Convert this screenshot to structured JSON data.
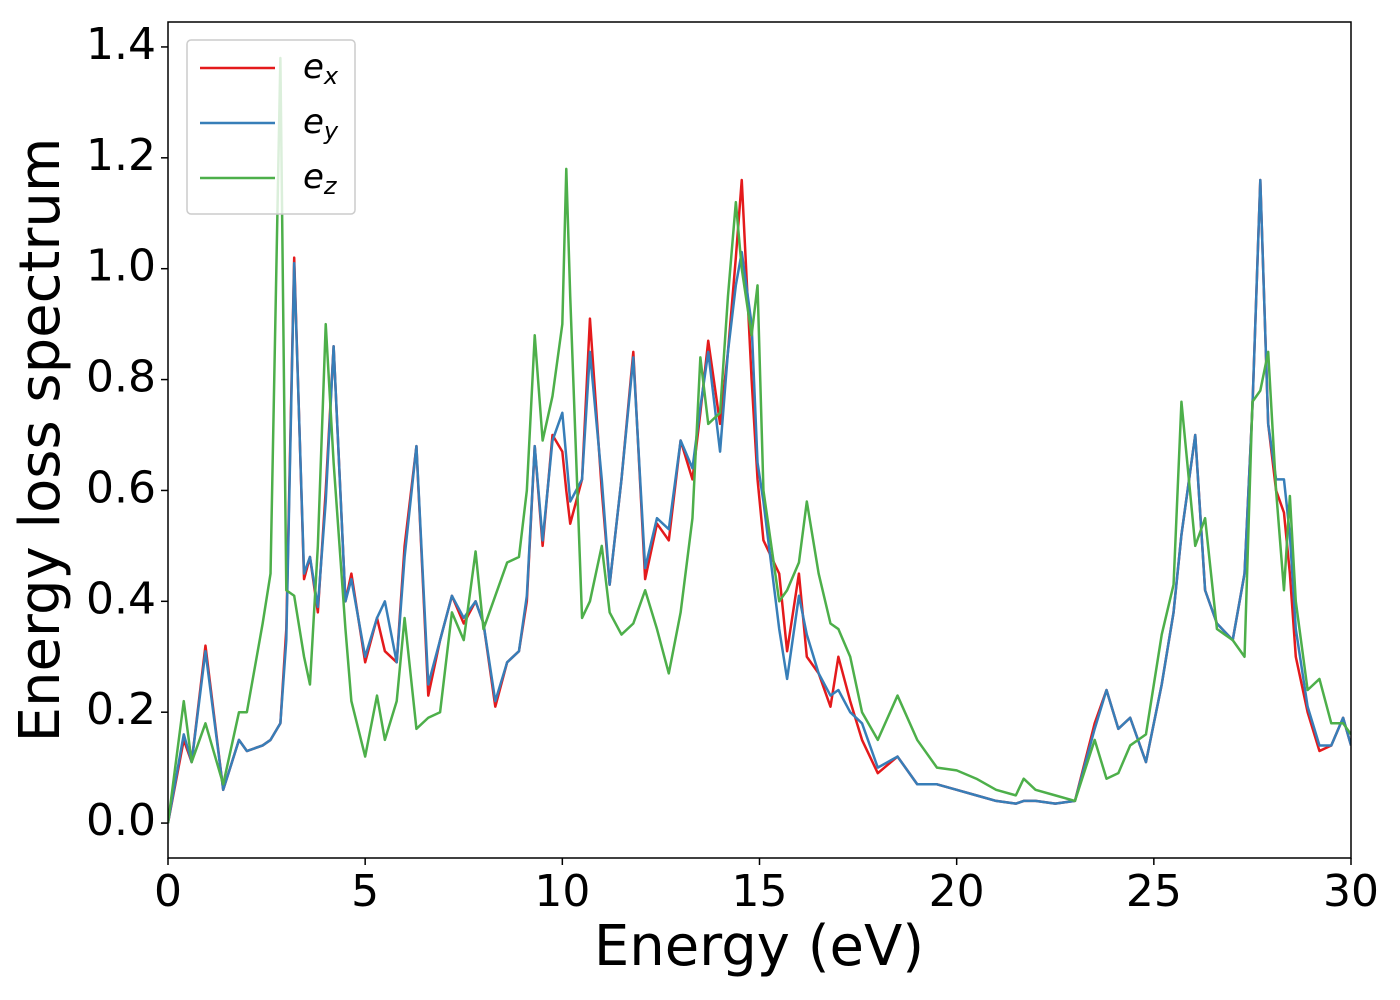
{
  "chart_data": {
    "type": "line",
    "xlabel": "Energy (eV)",
    "ylabel": "Energy loss spectrum",
    "x": [
      0,
      0.4,
      0.6,
      0.95,
      1.4,
      1.8,
      2.0,
      2.4,
      2.6,
      2.85,
      3.0,
      3.2,
      3.45,
      3.6,
      3.8,
      4.0,
      4.2,
      4.5,
      4.65,
      5.0,
      5.3,
      5.5,
      5.8,
      6.0,
      6.3,
      6.6,
      6.9,
      7.2,
      7.5,
      7.8,
      8.0,
      8.3,
      8.6,
      8.9,
      9.1,
      9.3,
      9.5,
      9.75,
      10.0,
      10.1,
      10.2,
      10.5,
      10.7,
      11.0,
      11.2,
      11.5,
      11.8,
      12.1,
      12.4,
      12.7,
      13.0,
      13.3,
      13.5,
      13.7,
      14.0,
      14.2,
      14.4,
      14.55,
      14.8,
      14.95,
      15.1,
      15.5,
      15.7,
      16.0,
      16.2,
      16.5,
      16.8,
      17.0,
      17.3,
      17.6,
      18.0,
      18.5,
      19.0,
      19.5,
      20.0,
      20.5,
      21.0,
      21.5,
      21.7,
      22.0,
      22.5,
      23.0,
      23.5,
      23.8,
      24.1,
      24.4,
      24.8,
      25.2,
      25.5,
      25.7,
      26.05,
      26.3,
      26.6,
      27.0,
      27.3,
      27.5,
      27.7,
      27.9,
      28.1,
      28.3,
      28.45,
      28.6,
      28.9,
      29.2,
      29.5,
      29.8,
      30.0
    ],
    "series": [
      {
        "name": "ex",
        "color": "#e41a1c",
        "values": [
          0,
          0.15,
          0.11,
          0.32,
          0.06,
          0.15,
          0.13,
          0.14,
          0.15,
          0.18,
          0.35,
          1.02,
          0.44,
          0.48,
          0.38,
          0.6,
          0.86,
          0.4,
          0.45,
          0.29,
          0.37,
          0.31,
          0.29,
          0.5,
          0.68,
          0.23,
          0.33,
          0.41,
          0.36,
          0.4,
          0.36,
          0.21,
          0.29,
          0.31,
          0.4,
          0.68,
          0.5,
          0.7,
          0.67,
          0.6,
          0.54,
          0.62,
          0.91,
          0.6,
          0.43,
          0.62,
          0.85,
          0.44,
          0.54,
          0.51,
          0.69,
          0.62,
          0.74,
          0.87,
          0.72,
          0.85,
          1.02,
          1.16,
          0.8,
          0.62,
          0.51,
          0.45,
          0.31,
          0.45,
          0.3,
          0.27,
          0.21,
          0.3,
          0.22,
          0.15,
          0.09,
          0.12,
          0.07,
          0.07,
          0.06,
          0.05,
          0.04,
          0.035,
          0.04,
          0.04,
          0.035,
          0.04,
          0.18,
          0.24,
          0.17,
          0.19,
          0.11,
          0.25,
          0.38,
          0.52,
          0.7,
          0.42,
          0.36,
          0.33,
          0.45,
          0.75,
          1.16,
          0.72,
          0.6,
          0.56,
          0.45,
          0.3,
          0.2,
          0.13,
          0.14,
          0.19,
          0.14
        ]
      },
      {
        "name": "ey",
        "color": "#377eb8",
        "values": [
          0,
          0.16,
          0.11,
          0.31,
          0.06,
          0.15,
          0.13,
          0.14,
          0.15,
          0.18,
          0.33,
          1.01,
          0.45,
          0.48,
          0.39,
          0.58,
          0.86,
          0.4,
          0.44,
          0.3,
          0.37,
          0.4,
          0.29,
          0.48,
          0.68,
          0.25,
          0.33,
          0.41,
          0.37,
          0.4,
          0.36,
          0.22,
          0.29,
          0.31,
          0.41,
          0.68,
          0.51,
          0.69,
          0.74,
          0.66,
          0.58,
          0.62,
          0.85,
          0.62,
          0.43,
          0.62,
          0.84,
          0.46,
          0.55,
          0.53,
          0.69,
          0.64,
          0.75,
          0.85,
          0.67,
          0.85,
          0.97,
          1.03,
          0.9,
          0.65,
          0.58,
          0.35,
          0.26,
          0.41,
          0.34,
          0.27,
          0.23,
          0.24,
          0.2,
          0.18,
          0.1,
          0.12,
          0.07,
          0.07,
          0.06,
          0.05,
          0.04,
          0.035,
          0.04,
          0.04,
          0.035,
          0.04,
          0.17,
          0.24,
          0.17,
          0.19,
          0.11,
          0.25,
          0.38,
          0.52,
          0.7,
          0.42,
          0.36,
          0.33,
          0.45,
          0.75,
          1.16,
          0.72,
          0.62,
          0.62,
          0.52,
          0.35,
          0.21,
          0.14,
          0.14,
          0.19,
          0.14
        ]
      },
      {
        "name": "ez",
        "color": "#4daf4a",
        "values": [
          0,
          0.22,
          0.11,
          0.18,
          0.07,
          0.2,
          0.2,
          0.36,
          0.45,
          1.38,
          0.42,
          0.41,
          0.3,
          0.25,
          0.5,
          0.9,
          0.65,
          0.35,
          0.22,
          0.12,
          0.23,
          0.15,
          0.22,
          0.37,
          0.17,
          0.19,
          0.2,
          0.38,
          0.33,
          0.49,
          0.35,
          0.41,
          0.47,
          0.48,
          0.6,
          0.88,
          0.69,
          0.77,
          0.9,
          1.18,
          0.95,
          0.37,
          0.4,
          0.5,
          0.38,
          0.34,
          0.36,
          0.42,
          0.35,
          0.27,
          0.38,
          0.55,
          0.84,
          0.72,
          0.74,
          0.95,
          1.12,
          1.0,
          0.88,
          0.97,
          0.6,
          0.4,
          0.42,
          0.47,
          0.58,
          0.45,
          0.36,
          0.35,
          0.3,
          0.2,
          0.15,
          0.23,
          0.15,
          0.1,
          0.095,
          0.08,
          0.06,
          0.05,
          0.08,
          0.06,
          0.05,
          0.04,
          0.15,
          0.08,
          0.09,
          0.14,
          0.16,
          0.34,
          0.43,
          0.76,
          0.5,
          0.55,
          0.35,
          0.33,
          0.3,
          0.76,
          0.78,
          0.85,
          0.6,
          0.42,
          0.59,
          0.4,
          0.24,
          0.26,
          0.18,
          0.18,
          0.16
        ]
      }
    ],
    "xlim": [
      0,
      30
    ],
    "xticks": [
      0,
      5,
      10,
      15,
      20,
      25,
      30
    ],
    "ylim": [
      -0.063,
      1.445
    ],
    "yticks": [
      {
        "value": 0,
        "label": "0.0"
      },
      0.2,
      0.4,
      0.6,
      0.8,
      {
        "value": 1,
        "label": "1.0"
      },
      1.2,
      1.4
    ],
    "legend": "upper left",
    "grid": false
  }
}
